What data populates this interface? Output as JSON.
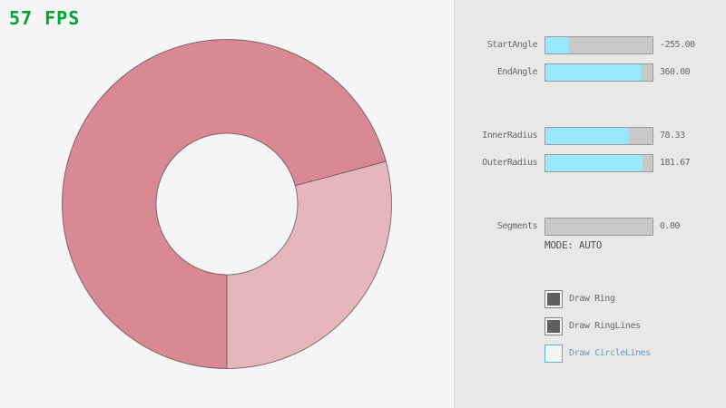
{
  "fps": {
    "text": "57 FPS"
  },
  "ring": {
    "start_angle": "-255.00",
    "end_angle": "360.00",
    "inner_radius": "78.33",
    "outer_radius": "181.67",
    "segments": "0.00"
  },
  "panel": {
    "sliders": [
      {
        "label": "StartAngle",
        "value": "-255.00",
        "fill_pct": 21.7
      },
      {
        "label": "EndAngle",
        "value": "360.00",
        "fill_pct": 90.0
      },
      {
        "label": "InnerRadius",
        "value": "78.33",
        "fill_pct": 78.3
      },
      {
        "label": "OuterRadius",
        "value": "181.67",
        "fill_pct": 90.8
      },
      {
        "label": "Segments",
        "value": "0.00",
        "fill_pct": 0
      }
    ],
    "mode_text": "MODE: AUTO",
    "checkboxes": [
      {
        "label": "Draw Ring",
        "checked": true,
        "focused": false
      },
      {
        "label": "Draw RingLines",
        "checked": true,
        "focused": false
      },
      {
        "label": "Draw CircleLines",
        "checked": false,
        "focused": true
      }
    ]
  },
  "theme": {
    "bg": "#F5F5F5",
    "panel-bg": "#E8E8E8",
    "divider": "#DADADA",
    "text-gray": "#686868",
    "text-dark": "#505050",
    "fps-green": "#00A52F",
    "slider-fill": "#97E8FF",
    "slider-track": "#C9C9C9",
    "slider-border": "#9A9A9A",
    "checkbox-border": "#838383",
    "checkbox-check": "#606060",
    "focus-blue": "#5BB2D9",
    "focus-text": "#6C9BBC",
    "ring-dark": "#D98994",
    "ring-light": "#E6B6BD",
    "ring-line": "rgba(0,0,0,0.45)"
  }
}
